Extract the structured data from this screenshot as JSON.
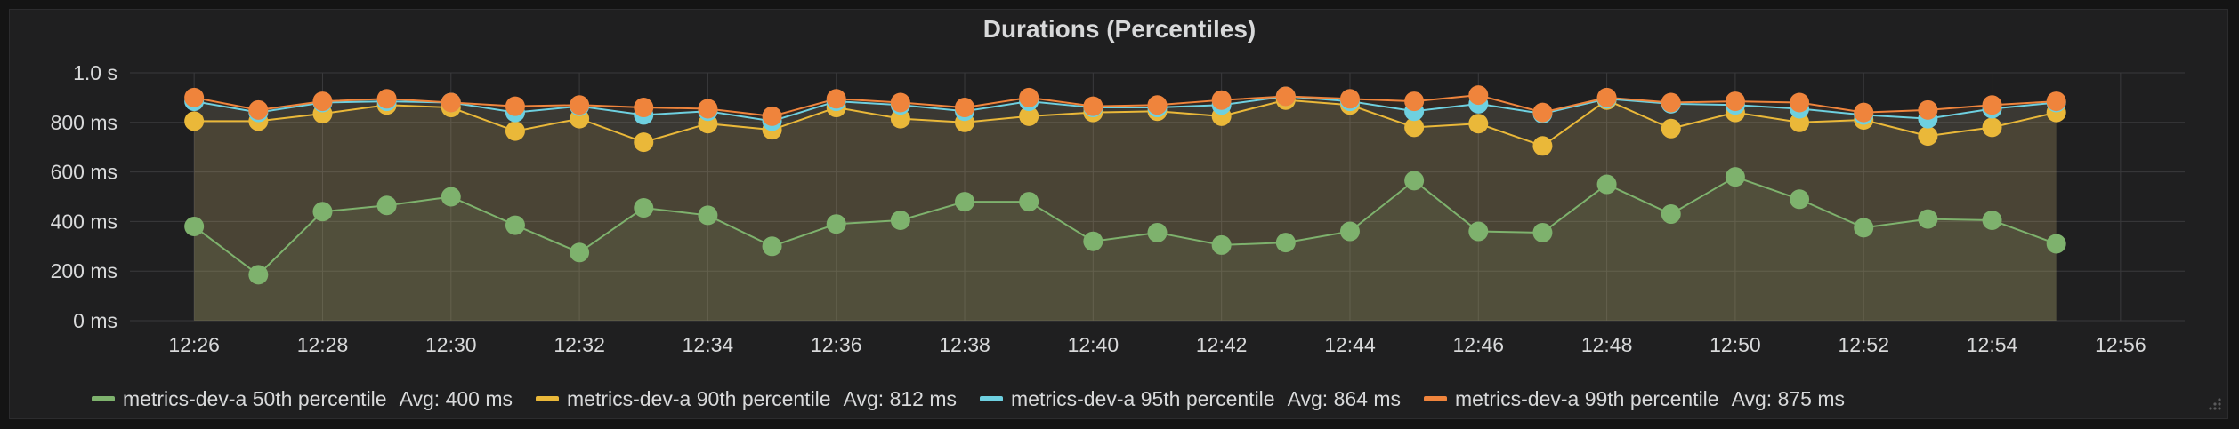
{
  "chart_data": {
    "type": "line",
    "title": "Durations (Percentiles)",
    "xlabel": "",
    "ylabel": "",
    "x": [
      "12:26",
      "12:27",
      "12:28",
      "12:29",
      "12:30",
      "12:31",
      "12:32",
      "12:33",
      "12:34",
      "12:35",
      "12:36",
      "12:37",
      "12:38",
      "12:39",
      "12:40",
      "12:41",
      "12:42",
      "12:43",
      "12:44",
      "12:45",
      "12:46",
      "12:47",
      "12:48",
      "12:49",
      "12:50",
      "12:51",
      "12:52",
      "12:53",
      "12:54",
      "12:55"
    ],
    "xlim": [
      "12:25",
      "12:57"
    ],
    "x_ticks": [
      "12:26",
      "12:28",
      "12:30",
      "12:32",
      "12:34",
      "12:36",
      "12:38",
      "12:40",
      "12:42",
      "12:44",
      "12:46",
      "12:48",
      "12:50",
      "12:52",
      "12:54",
      "12:56"
    ],
    "ylim": [
      0,
      1000
    ],
    "y_ticks": [
      0,
      200,
      400,
      600,
      800,
      1000
    ],
    "y_tick_labels": [
      "0 ms",
      "200 ms",
      "400 ms",
      "600 ms",
      "800 ms",
      "1.0 s"
    ],
    "grid": true,
    "legend_position": "bottom",
    "series": [
      {
        "name": "metrics-dev-a 50th percentile",
        "avg_label": "Avg: 400 ms",
        "color": "#7eb26d",
        "values": [
          380,
          185,
          440,
          465,
          500,
          385,
          275,
          455,
          425,
          300,
          390,
          405,
          480,
          480,
          320,
          355,
          305,
          315,
          360,
          565,
          360,
          355,
          550,
          430,
          580,
          490,
          375,
          410,
          405,
          310
        ]
      },
      {
        "name": "metrics-dev-a 90th percentile",
        "avg_label": "Avg: 812 ms",
        "color": "#eab839",
        "values": [
          805,
          805,
          835,
          870,
          860,
          765,
          815,
          720,
          795,
          770,
          860,
          815,
          800,
          825,
          840,
          845,
          825,
          890,
          870,
          780,
          795,
          705,
          890,
          775,
          840,
          800,
          810,
          745,
          780,
          840
        ]
      },
      {
        "name": "metrics-dev-a 95th percentile",
        "avg_label": "Avg: 864 ms",
        "color": "#6ed0e0",
        "values": [
          885,
          840,
          880,
          885,
          880,
          840,
          865,
          830,
          845,
          805,
          885,
          870,
          845,
          885,
          860,
          860,
          870,
          905,
          885,
          845,
          875,
          835,
          895,
          875,
          870,
          855,
          830,
          815,
          855,
          880
        ]
      },
      {
        "name": "metrics-dev-a 99th percentile",
        "avg_label": "Avg: 875 ms",
        "color": "#ef843c",
        "values": [
          900,
          850,
          885,
          895,
          880,
          865,
          870,
          860,
          855,
          825,
          895,
          880,
          860,
          900,
          865,
          870,
          890,
          905,
          895,
          885,
          910,
          840,
          900,
          880,
          885,
          880,
          840,
          850,
          870,
          885
        ]
      }
    ]
  }
}
